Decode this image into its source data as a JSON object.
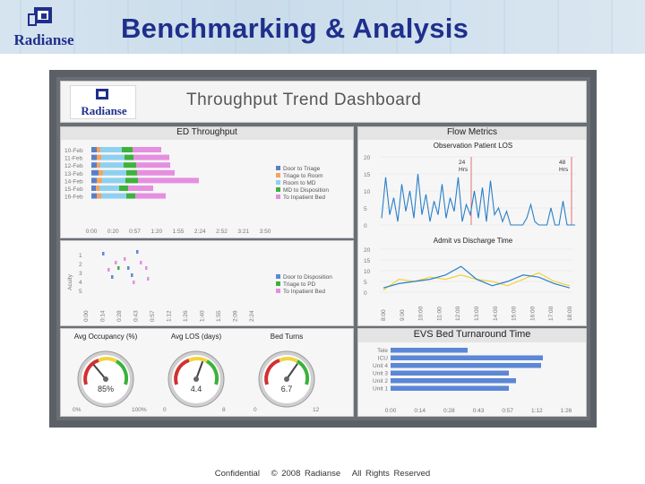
{
  "slide": {
    "title": "Benchmarking & Analysis",
    "logo_text": "Radianse"
  },
  "dashboard": {
    "title": "Throughput Trend Dashboard",
    "logo_text": "Radianse",
    "ed_throughput": {
      "title": "ED Throughput",
      "dates": [
        "10-Feb",
        "11-Feb",
        "12-Feb",
        "13-Feb",
        "14-Feb",
        "15-Feb",
        "16-Feb"
      ],
      "time_ticks": [
        "0:00",
        "0:20",
        "0:57",
        "1:20",
        "1:55",
        "2:24",
        "2:52",
        "3:21",
        "3:50"
      ],
      "legend": [
        "Door to Triage",
        "Triage to Room",
        "Room to MD",
        "MD to Disposition",
        "To Inpatient Bed"
      ],
      "legend_colors": [
        "#5b7fc7",
        "#f4a460",
        "#8fd0f0",
        "#3db23d",
        "#e58fe0"
      ]
    },
    "acuity": {
      "y_label": "Acuity",
      "y_ticks": [
        "1",
        "2",
        "3",
        "4",
        "5"
      ],
      "time_ticks": [
        "0:00",
        "0:14",
        "0:28",
        "0:43",
        "0:57",
        "1:12",
        "1:26",
        "1:40",
        "1:55",
        "2:09",
        "2:24"
      ],
      "legend": [
        "Door to Disposition",
        "Triage to PD",
        "To Inpatient Bed"
      ],
      "legend_colors": [
        "#5b8ad8",
        "#3db23d",
        "#e58fe0"
      ]
    },
    "gauges": [
      {
        "title": "Avg Occupancy (%)",
        "value": "85%",
        "min": "0%",
        "max": "100%"
      },
      {
        "title": "Avg LOS (days)",
        "value": "4.4",
        "min": "0",
        "max": "8"
      },
      {
        "title": "Bed Turns",
        "value": "6.7",
        "min": "0",
        "max": "12"
      }
    ],
    "flow_metrics": {
      "title": "Flow Metrics",
      "obs_los": {
        "title": "Observation Patient LOS",
        "y_ticks": [
          "20",
          "15",
          "10",
          "5",
          "0"
        ],
        "marker_24": "24",
        "marker_24_unit": "Hrs",
        "marker_48": "48",
        "marker_48_unit": "Hrs"
      },
      "admit_discharge": {
        "title": "Admit vs Discharge Time",
        "y_ticks": [
          "20",
          "15",
          "10",
          "5",
          "0"
        ],
        "time_ticks": [
          "8:00",
          "9:00",
          "10:00",
          "11:00",
          "12:00",
          "13:00",
          "14:00",
          "15:00",
          "16:00",
          "17:00",
          "18:00"
        ]
      }
    },
    "evs": {
      "title": "EVS Bed Turnaround Time",
      "units": [
        "Tele",
        "ICU",
        "Unit 4",
        "Unit 3",
        "Unit 2",
        "Unit 1"
      ],
      "time_ticks": [
        "0:00",
        "0:14",
        "0:28",
        "0:43",
        "0:57",
        "1:12",
        "1:26"
      ],
      "bar_color": "#5b87d6"
    }
  },
  "footer": {
    "confidential": "Confidential",
    "copyright": "© 2008 Radianse",
    "rights": "All Rights Reserved"
  },
  "colors": {
    "title": "#1f2f8c",
    "line_blue": "#2a7fc8",
    "line_yellow": "#f0d23c",
    "marker_red": "#e05050"
  }
}
